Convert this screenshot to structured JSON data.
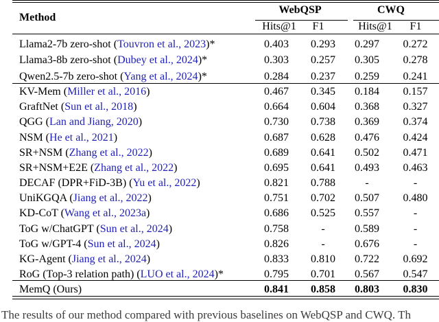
{
  "table": {
    "citation_color": "#1f1fb4",
    "header": {
      "method_label": "Method",
      "dataset_groups": [
        {
          "label": "WebQSP"
        },
        {
          "label": "CWQ"
        }
      ],
      "sub_cols": [
        "Hits@1",
        "F1",
        "Hits@1",
        "F1"
      ]
    },
    "groups": [
      {
        "rows": [
          {
            "method_pre": "Llama2-7b zero-shot (",
            "citation": "Touvron et al., 2023",
            "method_post": ")*",
            "values": [
              "0.403",
              "0.293",
              "0.297",
              "0.272"
            ],
            "bold": false
          },
          {
            "method_pre": "Llama3-8b zero-shot (",
            "citation": "Dubey et al., 2024",
            "method_post": ")*",
            "values": [
              "0.303",
              "0.257",
              "0.305",
              "0.278"
            ],
            "bold": false
          },
          {
            "method_pre": "Qwen2.5-7b zero-shot (",
            "citation": "Yang et al., 2024",
            "method_post": ")*",
            "values": [
              "0.284",
              "0.237",
              "0.259",
              "0.241"
            ],
            "bold": false
          }
        ]
      },
      {
        "rows": [
          {
            "method_pre": "KV-Mem (",
            "citation": "Miller et al., 2016",
            "method_post": ")",
            "values": [
              "0.467",
              "0.345",
              "0.184",
              "0.157"
            ],
            "bold": false
          },
          {
            "method_pre": "GraftNet (",
            "citation": "Sun et al., 2018",
            "method_post": ")",
            "values": [
              "0.664",
              "0.604",
              "0.368",
              "0.327"
            ],
            "bold": false
          },
          {
            "method_pre": "QGG (",
            "citation": "Lan and Jiang, 2020",
            "method_post": ")",
            "values": [
              "0.730",
              "0.738",
              "0.369",
              "0.374"
            ],
            "bold": false
          },
          {
            "method_pre": "NSM (",
            "citation": "He et al., 2021",
            "method_post": ")",
            "values": [
              "0.687",
              "0.628",
              "0.476",
              "0.424"
            ],
            "bold": false
          },
          {
            "method_pre": "SR+NSM (",
            "citation": "Zhang et al., 2022",
            "method_post": ")",
            "values": [
              "0.689",
              "0.641",
              "0.502",
              "0.471"
            ],
            "bold": false
          },
          {
            "method_pre": "SR+NSM+E2E (",
            "citation": "Zhang et al., 2022",
            "method_post": ")",
            "values": [
              "0.695",
              "0.641",
              "0.493",
              "0.463"
            ],
            "bold": false
          },
          {
            "method_pre": "DECAF (DPR+FiD-3B) (",
            "citation": "Yu et al., 2022",
            "method_post": ")",
            "values": [
              "0.821",
              "0.788",
              "-",
              "-"
            ],
            "bold": false
          },
          {
            "method_pre": "UniKGQA (",
            "citation": "Jiang et al., 2022",
            "method_post": ")",
            "values": [
              "0.751",
              "0.702",
              "0.507",
              "0.480"
            ],
            "bold": false
          },
          {
            "method_pre": "KD-CoT (",
            "citation": "Wang et al., 2023a",
            "method_post": ")",
            "values": [
              "0.686",
              "0.525",
              "0.557",
              "-"
            ],
            "bold": false
          },
          {
            "method_pre": "ToG w/ChatGPT (",
            "citation": "Sun et al., 2024",
            "method_post": ")",
            "values": [
              "0.758",
              "-",
              "0.589",
              "-"
            ],
            "bold": false
          },
          {
            "method_pre": "ToG w/GPT-4 (",
            "citation": "Sun et al., 2024",
            "method_post": ")",
            "values": [
              "0.826",
              "-",
              "0.676",
              "-"
            ],
            "bold": false
          },
          {
            "method_pre": "KG-Agent (",
            "citation": "Jiang et al., 2024",
            "method_post": ")",
            "values": [
              "0.833",
              "0.810",
              "0.722",
              "0.692"
            ],
            "bold": false
          },
          {
            "method_pre": "RoG (Top-3 relation path) (",
            "citation": "LUO et al., 2024",
            "method_post": ")*",
            "values": [
              "0.795",
              "0.701",
              "0.567",
              "0.547"
            ],
            "bold": false
          }
        ]
      },
      {
        "rows": [
          {
            "method_pre": "MemQ (Ours)",
            "citation": "",
            "method_post": "",
            "values": [
              "0.841",
              "0.858",
              "0.803",
              "0.830"
            ],
            "bold": true
          }
        ]
      }
    ]
  },
  "caption": {
    "fragment": "The results of our method compared with previous baselines on WebQSP and CWQ. Th"
  }
}
